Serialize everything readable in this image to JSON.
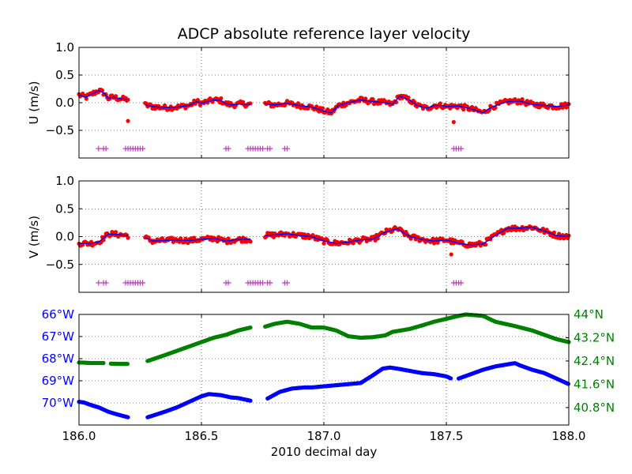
{
  "title": "ADCP absolute reference layer velocity",
  "colors": {
    "data_red": "#ff0000",
    "data_blue": "#0000ff",
    "flag_magenta": "#bf3fbf",
    "lon_blue": "#0000ff",
    "lat_green": "#008000",
    "axes": "#000000"
  },
  "chart_data": [
    {
      "id": "u",
      "type": "scatter",
      "ylabel": "U (m/s)",
      "xlim": [
        186.0,
        188.0
      ],
      "ylim": [
        -1.0,
        1.0
      ],
      "yticks": [
        1.0,
        0.5,
        0.0,
        -0.5
      ],
      "ytick_labels": [
        "1.0",
        "0.5",
        "0.0",
        "−0.5"
      ],
      "xticks": [
        186.0,
        186.5,
        187.0,
        187.5,
        188.0
      ],
      "grid": true,
      "segments": [
        [
          186.0,
          186.2
        ],
        [
          186.27,
          186.7
        ],
        [
          186.76,
          188.0
        ]
      ],
      "series": [],
      "trend": [
        [
          186.0,
          0.14
        ],
        [
          186.03,
          0.1
        ],
        [
          186.05,
          0.15
        ],
        [
          186.08,
          0.22
        ],
        [
          186.1,
          0.18
        ],
        [
          186.12,
          0.08
        ],
        [
          186.14,
          0.1
        ],
        [
          186.17,
          0.07
        ],
        [
          186.2,
          0.06
        ],
        [
          186.27,
          -0.04
        ],
        [
          186.3,
          -0.07
        ],
        [
          186.35,
          -0.09
        ],
        [
          186.4,
          -0.08
        ],
        [
          186.45,
          -0.05
        ],
        [
          186.48,
          0.02
        ],
        [
          186.5,
          -0.01
        ],
        [
          186.55,
          0.05
        ],
        [
          186.58,
          0.04
        ],
        [
          186.6,
          -0.02
        ],
        [
          186.63,
          -0.04
        ],
        [
          186.66,
          -0.02
        ],
        [
          186.7,
          -0.03
        ],
        [
          186.76,
          -0.02
        ],
        [
          186.8,
          -0.04
        ],
        [
          186.85,
          -0.01
        ],
        [
          186.9,
          -0.05
        ],
        [
          186.95,
          -0.08
        ],
        [
          187.0,
          -0.15
        ],
        [
          187.03,
          -0.18
        ],
        [
          187.06,
          -0.05
        ],
        [
          187.1,
          0.0
        ],
        [
          187.15,
          0.05
        ],
        [
          187.2,
          0.02
        ],
        [
          187.25,
          0.0
        ],
        [
          187.28,
          -0.03
        ],
        [
          187.31,
          0.12
        ],
        [
          187.35,
          0.05
        ],
        [
          187.38,
          -0.05
        ],
        [
          187.42,
          -0.1
        ],
        [
          187.45,
          -0.05
        ],
        [
          187.48,
          -0.05
        ],
        [
          187.5,
          -0.07
        ],
        [
          187.55,
          -0.06
        ],
        [
          187.6,
          -0.11
        ],
        [
          187.65,
          -0.18
        ],
        [
          187.68,
          -0.09
        ],
        [
          187.72,
          -0.02
        ],
        [
          187.75,
          0.02
        ],
        [
          187.8,
          0.03
        ],
        [
          187.85,
          -0.03
        ],
        [
          187.9,
          -0.05
        ],
        [
          187.95,
          -0.07
        ],
        [
          188.0,
          -0.04
        ]
      ],
      "flags": {
        "y": -0.83,
        "x": [
          186.08,
          186.1,
          186.11,
          186.19,
          186.2,
          186.21,
          186.22,
          186.23,
          186.24,
          186.25,
          186.26,
          186.6,
          186.61,
          186.69,
          186.7,
          186.71,
          186.72,
          186.73,
          186.74,
          186.75,
          186.77,
          186.78,
          186.84,
          186.85,
          187.53,
          187.54,
          187.55,
          187.56
        ]
      }
    },
    {
      "id": "v",
      "type": "scatter",
      "ylabel": "V (m/s)",
      "xlim": [
        186.0,
        188.0
      ],
      "ylim": [
        -1.0,
        1.0
      ],
      "yticks": [
        1.0,
        0.5,
        0.0,
        -0.5
      ],
      "ytick_labels": [
        "1.0",
        "0.5",
        "0.0",
        "−0.5"
      ],
      "xticks": [
        186.0,
        186.5,
        187.0,
        187.5,
        188.0
      ],
      "grid": true,
      "segments": [
        [
          186.0,
          186.2
        ],
        [
          186.27,
          186.7
        ],
        [
          186.76,
          188.0
        ]
      ],
      "series": [],
      "trend": [
        [
          186.0,
          -0.12
        ],
        [
          186.05,
          -0.12
        ],
        [
          186.08,
          -0.1
        ],
        [
          186.12,
          0.05
        ],
        [
          186.15,
          0.04
        ],
        [
          186.2,
          0.02
        ],
        [
          186.27,
          -0.02
        ],
        [
          186.3,
          -0.08
        ],
        [
          186.35,
          -0.07
        ],
        [
          186.4,
          -0.06
        ],
        [
          186.45,
          -0.07
        ],
        [
          186.5,
          -0.05
        ],
        [
          186.55,
          -0.03
        ],
        [
          186.6,
          -0.08
        ],
        [
          186.65,
          -0.05
        ],
        [
          186.7,
          -0.05
        ],
        [
          186.76,
          0.02
        ],
        [
          186.8,
          0.03
        ],
        [
          186.85,
          0.05
        ],
        [
          186.9,
          0.02
        ],
        [
          186.95,
          0.0
        ],
        [
          187.0,
          -0.08
        ],
        [
          187.05,
          -0.12
        ],
        [
          187.1,
          -0.1
        ],
        [
          187.15,
          -0.06
        ],
        [
          187.2,
          -0.05
        ],
        [
          187.25,
          0.08
        ],
        [
          187.3,
          0.14
        ],
        [
          187.35,
          0.0
        ],
        [
          187.4,
          -0.05
        ],
        [
          187.45,
          -0.08
        ],
        [
          187.5,
          -0.06
        ],
        [
          187.55,
          -0.12
        ],
        [
          187.6,
          -0.15
        ],
        [
          187.65,
          -0.13
        ],
        [
          187.7,
          0.02
        ],
        [
          187.75,
          0.15
        ],
        [
          187.8,
          0.15
        ],
        [
          187.85,
          0.17
        ],
        [
          187.9,
          0.1
        ],
        [
          187.95,
          0.02
        ],
        [
          188.0,
          0.0
        ]
      ],
      "flags": {
        "y": -0.83,
        "x": [
          186.08,
          186.1,
          186.11,
          186.19,
          186.2,
          186.21,
          186.22,
          186.23,
          186.24,
          186.25,
          186.26,
          186.6,
          186.61,
          186.69,
          186.7,
          186.71,
          186.72,
          186.73,
          186.74,
          186.75,
          186.77,
          186.78,
          186.84,
          186.85,
          187.53,
          187.54,
          187.55,
          187.56
        ]
      }
    },
    {
      "id": "position",
      "type": "scatter",
      "xlabel": "2010 decimal day",
      "xlim": [
        186.0,
        188.0
      ],
      "xticks": [
        186.0,
        186.5,
        187.0,
        187.5,
        188.0
      ],
      "xtick_labels": [
        "186.0",
        "186.5",
        "187.0",
        "187.5",
        "188.0"
      ],
      "grid": true,
      "left_axis": {
        "label_color": "#0000ff",
        "ylim": [
          -71.0,
          -66.0
        ],
        "yticks": [
          -66,
          -67,
          -68,
          -69,
          -70
        ],
        "ytick_labels": [
          "66°W",
          "67°W",
          "68°W",
          "69°W",
          "70°W"
        ]
      },
      "right_axis": {
        "label_color": "#008000",
        "ylim": [
          40.2,
          44.0
        ],
        "yticks": [
          44.0,
          43.2,
          42.4,
          41.6,
          40.8
        ],
        "ytick_labels": [
          "44°N",
          "43.2°N",
          "42.4°N",
          "41.6°N",
          "40.8°N"
        ]
      },
      "series": [
        {
          "axis": "left",
          "color": "#0000ff",
          "points": [
            [
              186.0,
              -69.95
            ],
            [
              186.02,
              -69.98
            ],
            [
              186.05,
              -70.1
            ],
            [
              186.08,
              -70.2
            ],
            [
              186.1,
              -70.3
            ],
            [
              186.12,
              -70.4
            ],
            [
              186.15,
              -70.5
            ],
            [
              186.2,
              -70.65
            ],
            [
              186.28,
              -70.65
            ],
            [
              186.35,
              -70.4
            ],
            [
              186.4,
              -70.2
            ],
            [
              186.45,
              -69.95
            ],
            [
              186.5,
              -69.7
            ],
            [
              186.53,
              -69.6
            ],
            [
              186.58,
              -69.65
            ],
            [
              186.62,
              -69.75
            ],
            [
              186.65,
              -69.78
            ],
            [
              186.7,
              -69.9
            ],
            [
              186.77,
              -69.8
            ],
            [
              186.82,
              -69.5
            ],
            [
              186.87,
              -69.35
            ],
            [
              186.92,
              -69.3
            ],
            [
              186.95,
              -69.3
            ],
            [
              187.0,
              -69.25
            ],
            [
              187.05,
              -69.2
            ],
            [
              187.1,
              -69.15
            ],
            [
              187.15,
              -69.1
            ],
            [
              187.2,
              -68.75
            ],
            [
              187.24,
              -68.45
            ],
            [
              187.27,
              -68.4
            ],
            [
              187.3,
              -68.45
            ],
            [
              187.35,
              -68.55
            ],
            [
              187.4,
              -68.65
            ],
            [
              187.45,
              -68.7
            ],
            [
              187.5,
              -68.8
            ],
            [
              187.52,
              -68.9
            ],
            [
              187.55,
              -68.9
            ],
            [
              187.6,
              -68.7
            ],
            [
              187.65,
              -68.5
            ],
            [
              187.7,
              -68.35
            ],
            [
              187.78,
              -68.2
            ],
            [
              187.8,
              -68.3
            ],
            [
              187.85,
              -68.5
            ],
            [
              187.9,
              -68.65
            ],
            [
              187.95,
              -68.9
            ],
            [
              188.0,
              -69.15
            ]
          ],
          "segments": [
            [
              186.0,
              186.2
            ],
            [
              186.28,
              186.7
            ],
            [
              186.77,
              187.52
            ],
            [
              187.55,
              188.0
            ]
          ]
        },
        {
          "axis": "right",
          "color": "#008000",
          "points": [
            [
              186.0,
              42.35
            ],
            [
              186.05,
              42.33
            ],
            [
              186.1,
              42.33
            ],
            [
              186.13,
              42.31
            ],
            [
              186.17,
              42.3
            ],
            [
              186.2,
              42.3
            ],
            [
              186.28,
              42.4
            ],
            [
              186.35,
              42.6
            ],
            [
              186.4,
              42.75
            ],
            [
              186.45,
              42.9
            ],
            [
              186.5,
              43.05
            ],
            [
              186.55,
              43.2
            ],
            [
              186.6,
              43.3
            ],
            [
              186.65,
              43.45
            ],
            [
              186.7,
              43.55
            ],
            [
              186.76,
              43.58
            ],
            [
              186.8,
              43.68
            ],
            [
              186.85,
              43.75
            ],
            [
              186.9,
              43.68
            ],
            [
              186.95,
              43.55
            ],
            [
              187.0,
              43.55
            ],
            [
              187.05,
              43.45
            ],
            [
              187.1,
              43.25
            ],
            [
              187.15,
              43.2
            ],
            [
              187.2,
              43.22
            ],
            [
              187.25,
              43.28
            ],
            [
              187.28,
              43.4
            ],
            [
              187.35,
              43.5
            ],
            [
              187.4,
              43.62
            ],
            [
              187.45,
              43.75
            ],
            [
              187.5,
              43.85
            ],
            [
              187.55,
              43.95
            ],
            [
              187.58,
              44.0
            ],
            [
              187.65,
              43.95
            ],
            [
              187.7,
              43.75
            ],
            [
              187.78,
              43.6
            ],
            [
              187.85,
              43.45
            ],
            [
              187.9,
              43.3
            ],
            [
              187.95,
              43.15
            ],
            [
              188.0,
              43.05
            ]
          ],
          "segments": [
            [
              186.0,
              186.1
            ],
            [
              186.13,
              186.2
            ],
            [
              186.28,
              186.7
            ],
            [
              186.76,
              188.0
            ]
          ]
        }
      ]
    }
  ]
}
